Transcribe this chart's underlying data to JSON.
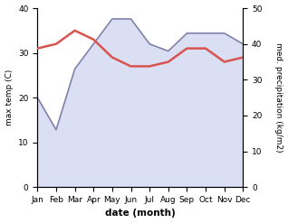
{
  "months": [
    "Jan",
    "Feb",
    "Mar",
    "Apr",
    "May",
    "Jun",
    "Jul",
    "Aug",
    "Sep",
    "Oct",
    "Nov",
    "Dec"
  ],
  "temperature": [
    31,
    32,
    35,
    33,
    29,
    27,
    27,
    28,
    31,
    31,
    28,
    29
  ],
  "precipitation": [
    25,
    16,
    33,
    40,
    47,
    47,
    40,
    38,
    43,
    43,
    43,
    40
  ],
  "temp_color": "#d9534f",
  "precip_fill_color": "#b0b8e8",
  "precip_line_color": "#8080aa",
  "xlabel": "date (month)",
  "ylabel_left": "max temp (C)",
  "ylabel_right": "med. precipitation (kg/m2)",
  "ylim_left": [
    0,
    40
  ],
  "ylim_right": [
    0,
    50
  ],
  "yticks_left": [
    0,
    10,
    20,
    30,
    40
  ],
  "yticks_right": [
    0,
    10,
    20,
    30,
    40,
    50
  ],
  "fig_width": 3.18,
  "fig_height": 2.47,
  "dpi": 100
}
